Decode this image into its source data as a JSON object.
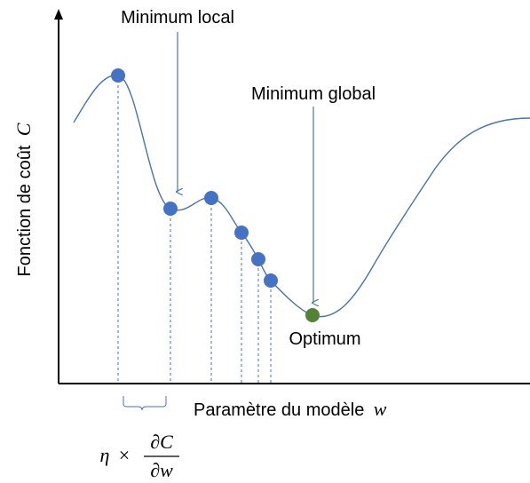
{
  "annotations": {
    "local_min_label": "Minimum local",
    "global_min_label": "Minimum global",
    "optimum_label": "Optimum"
  },
  "axes": {
    "y_label_text": "Fonction de coût",
    "y_label_symbol": "C",
    "x_label_text": "Paramètre du modèle",
    "x_label_symbol": "w"
  },
  "formula": {
    "eta": "η",
    "times": "×",
    "numerator": "∂C",
    "denominator": "∂w"
  },
  "colors": {
    "curve": "#4a72b0",
    "point": "#4472c4",
    "optimum_point": "#548235",
    "dashed_line": "#4472c4",
    "axis": "#000000"
  }
}
